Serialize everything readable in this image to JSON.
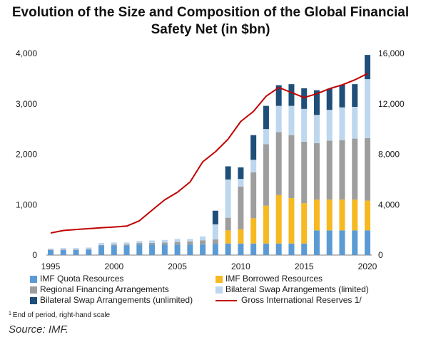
{
  "title_line1": "Evolution of the Size and Composition of the Global Financial",
  "title_line2": "Safety Net (in $bn)",
  "chart_data": {
    "type": "bar",
    "stacked": true,
    "x": [
      1995,
      1996,
      1997,
      1998,
      1999,
      2000,
      2001,
      2002,
      2003,
      2004,
      2005,
      2006,
      2007,
      2008,
      2009,
      2010,
      2011,
      2012,
      2013,
      2014,
      2015,
      2016,
      2017,
      2018,
      2019,
      2020
    ],
    "x_tick_labels": [
      "1995",
      "2000",
      "2005",
      "2010",
      "2015",
      "2020"
    ],
    "x_tick_values": [
      1995,
      2000,
      2005,
      2010,
      2015,
      2020
    ],
    "left_axis": {
      "ylim": [
        0,
        4000
      ],
      "ticks": [
        "0",
        "1,000",
        "2,000",
        "3,000",
        "4,000"
      ],
      "tick_values": [
        0,
        1000,
        2000,
        3000,
        4000
      ]
    },
    "right_axis": {
      "ylim": [
        0,
        16000
      ],
      "ticks": [
        "0",
        "4,000",
        "8,000",
        "12,000",
        "16,000"
      ],
      "tick_values": [
        0,
        4000,
        8000,
        12000,
        16000
      ]
    },
    "series": [
      {
        "name": "IMF Quota Resources",
        "color": "#5b9bd5",
        "axis": "left",
        "values": [
          100,
          100,
          100,
          110,
          190,
          190,
          190,
          210,
          210,
          210,
          210,
          210,
          210,
          220,
          230,
          230,
          230,
          230,
          230,
          230,
          230,
          490,
          490,
          490,
          490,
          490
        ]
      },
      {
        "name": "IMF Borrowed Resources",
        "color": "#f6b922",
        "axis": "left",
        "values": [
          0,
          0,
          0,
          0,
          0,
          0,
          0,
          0,
          0,
          0,
          0,
          0,
          0,
          0,
          260,
          280,
          500,
          750,
          960,
          900,
          800,
          610,
          610,
          610,
          610,
          590
        ]
      },
      {
        "name": "Regional Financing Arrangements",
        "color": "#9e9e9e",
        "axis": "left",
        "values": [
          10,
          10,
          10,
          10,
          10,
          20,
          20,
          30,
          30,
          40,
          50,
          60,
          80,
          90,
          250,
          850,
          910,
          1220,
          1250,
          1250,
          1220,
          1120,
          1170,
          1180,
          1210,
          1240
        ]
      },
      {
        "name": "Bilateral Swap Arrangements (limited)",
        "color": "#bcd7ee",
        "axis": "left",
        "values": [
          20,
          30,
          30,
          30,
          40,
          40,
          40,
          40,
          50,
          50,
          60,
          50,
          80,
          300,
          760,
          150,
          250,
          300,
          520,
          580,
          650,
          560,
          610,
          650,
          630,
          1170
        ]
      },
      {
        "name": "Bilateral Swap Arrangements (unlimited)",
        "color": "#1f4e79",
        "axis": "left",
        "values": [
          0,
          0,
          0,
          0,
          0,
          0,
          0,
          0,
          0,
          0,
          0,
          0,
          0,
          270,
          260,
          230,
          490,
          460,
          410,
          430,
          410,
          490,
          420,
          450,
          450,
          480
        ]
      },
      {
        "name": "Gross International Reserves 1/",
        "color": "#c00000",
        "axis": "right",
        "type": "line",
        "values": [
          1750,
          1950,
          2030,
          2100,
          2170,
          2230,
          2300,
          2720,
          3560,
          4380,
          4980,
          5800,
          7400,
          8200,
          9200,
          10600,
          11400,
          12600,
          13300,
          12900,
          12500,
          12800,
          13200,
          13500,
          13900,
          14400
        ]
      }
    ],
    "legend_position": "bottom"
  },
  "footnote_mark": "1",
  "footnote": "End of period, right-hand scale",
  "source": "Source: IMF."
}
